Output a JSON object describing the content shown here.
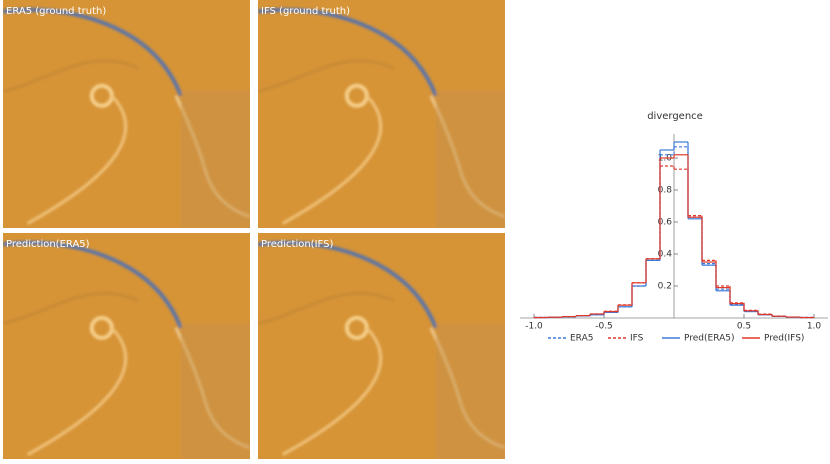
{
  "panels": [
    {
      "label": "ERA5 (ground truth)"
    },
    {
      "label": "IFS (ground truth)"
    },
    {
      "label": "Prediction(ERA5)"
    },
    {
      "label": "Prediction(IFS)"
    }
  ],
  "chart_data": {
    "type": "histogram",
    "title": "divergence",
    "bins": [
      -1.0,
      -0.9,
      -0.8,
      -0.7,
      -0.6,
      -0.5,
      -0.4,
      -0.3,
      -0.2,
      -0.1,
      0.0,
      0.1,
      0.2,
      0.3,
      0.4,
      0.5,
      0.6,
      0.7,
      0.8,
      0.9,
      1.0
    ],
    "series": [
      {
        "name": "ERA5",
        "color": "#3d7bd9",
        "style": "dashed",
        "values": [
          0.003,
          0.005,
          0.008,
          0.013,
          0.02,
          0.035,
          0.07,
          0.2,
          0.36,
          1.02,
          1.07,
          0.63,
          0.34,
          0.18,
          0.085,
          0.042,
          0.021,
          0.011,
          0.005,
          0.003
        ]
      },
      {
        "name": "IFS",
        "color": "#e0392b",
        "style": "dashed",
        "values": [
          0.003,
          0.005,
          0.009,
          0.015,
          0.025,
          0.042,
          0.082,
          0.22,
          0.37,
          0.95,
          0.93,
          0.64,
          0.36,
          0.2,
          0.095,
          0.048,
          0.024,
          0.012,
          0.006,
          0.003
        ]
      },
      {
        "name": "Pred(ERA5)",
        "color": "#3d7bd9",
        "style": "solid",
        "values": [
          0.003,
          0.005,
          0.008,
          0.013,
          0.02,
          0.035,
          0.07,
          0.2,
          0.36,
          1.05,
          1.1,
          0.62,
          0.33,
          0.17,
          0.08,
          0.04,
          0.02,
          0.01,
          0.005,
          0.003
        ]
      },
      {
        "name": "Pred(IFS)",
        "color": "#e0392b",
        "style": "solid",
        "values": [
          0.003,
          0.005,
          0.009,
          0.015,
          0.025,
          0.04,
          0.08,
          0.22,
          0.37,
          1.0,
          1.02,
          0.63,
          0.35,
          0.19,
          0.09,
          0.045,
          0.022,
          0.011,
          0.006,
          0.003
        ]
      }
    ],
    "xlim": [
      -1.1,
      1.1
    ],
    "xticks": [
      {
        "value": -1.0,
        "label": "-1.0"
      },
      {
        "value": -0.5,
        "label": "-0.5"
      },
      {
        "value": 0.5,
        "label": "0.5"
      },
      {
        "value": 1.0,
        "label": "1.0"
      }
    ],
    "ylim": [
      0,
      1.15
    ],
    "yticks": [
      0.2,
      0.4,
      0.6,
      0.8,
      {
        "value": 1.0,
        "label": "1.0"
      }
    ],
    "legend": "bottom"
  }
}
